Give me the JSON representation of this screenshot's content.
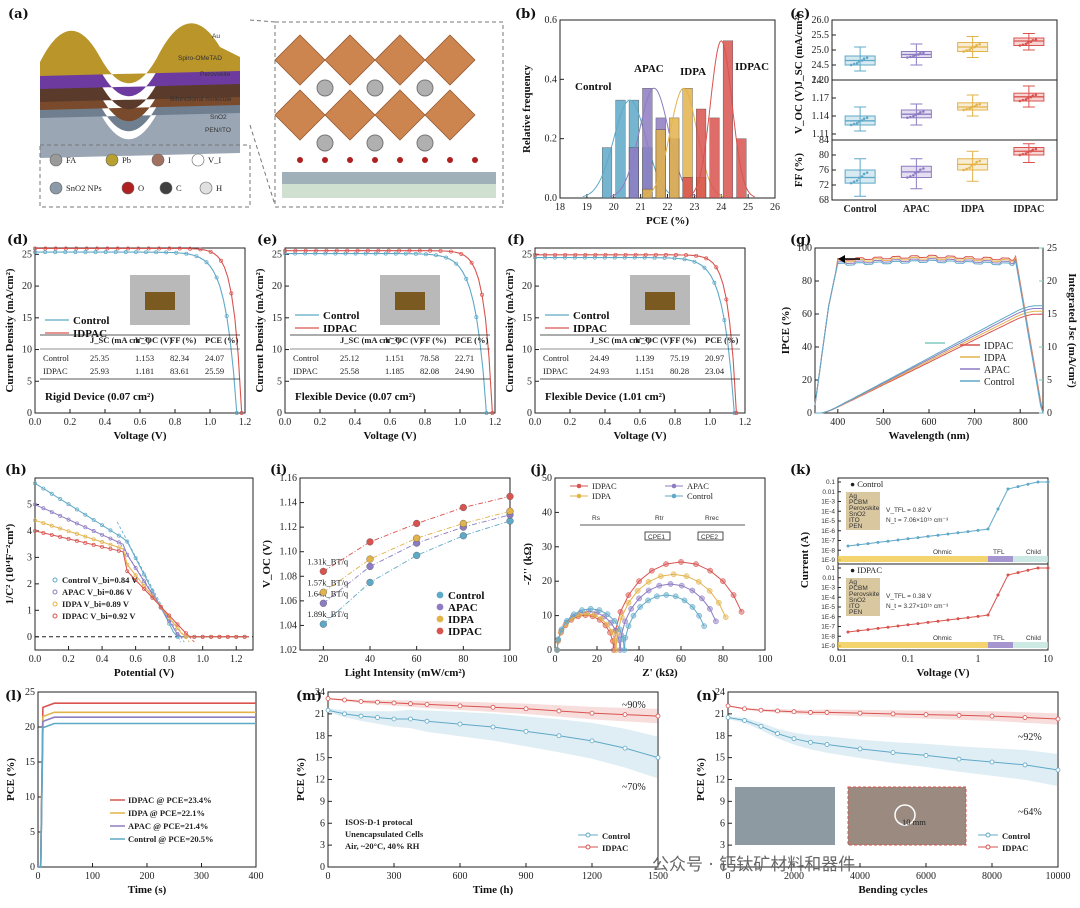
{
  "panel_labels": [
    "(a)",
    "(b)",
    "(c)",
    "(d)",
    "(e)",
    "(f)",
    "(g)",
    "(h)",
    "(i)",
    "(j)",
    "(k)",
    "(l)",
    "(m)",
    "(n)"
  ],
  "colors": {
    "Control": "#5fa9c8",
    "APAC": "#8e7cc3",
    "IDPA": "#e3b34b",
    "IDPAC": "#d9534f"
  },
  "schematic": {
    "layers": [
      "Au",
      "Spiro-OMeTAD",
      "Perovskite",
      "Bifunctional molecule",
      "SnO2",
      "PEN/ITO"
    ],
    "legend": [
      "FA",
      "Pb",
      "I",
      "V_I",
      "SnO2 NPs",
      "O",
      "C",
      "H"
    ],
    "icons": [
      "fa-sphere-icon",
      "pb-sphere-icon",
      "iodide-sphere-icon",
      "vacancy-circle-icon",
      "sno2-sphere-icon",
      "oxygen-sphere-icon",
      "carbon-sphere-icon",
      "hydrogen-sphere-icon"
    ]
  },
  "watermark": "公众号 · 钙钛矿材料和器件",
  "chart_data": [
    {
      "id": "b",
      "type": "bar",
      "xlabel": "PCE (%)",
      "ylabel": "Relative frequency",
      "xlim": [
        18,
        26
      ],
      "ylim": [
        0,
        0.6
      ],
      "xticks": [
        18,
        19,
        20,
        21,
        22,
        23,
        24,
        25,
        26
      ],
      "yticks": [
        0,
        0.2,
        0.4,
        0.6
      ],
      "series": [
        {
          "name": "Control",
          "bins": [
            19.75,
            20.25,
            20.75,
            21.25
          ],
          "values": [
            0.17,
            0.33,
            0.33,
            0.17
          ],
          "fit_center": 20.6,
          "fit_sigma": 0.6
        },
        {
          "name": "APAC",
          "bins": [
            20.75,
            21.25,
            21.75,
            22.25
          ],
          "values": [
            0.17,
            0.37,
            0.27,
            0.2
          ],
          "fit_center": 21.5,
          "fit_sigma": 0.55
        },
        {
          "name": "IDPA",
          "bins": [
            21.25,
            21.75,
            22.25,
            22.75,
            23.25
          ],
          "values": [
            0.03,
            0.23,
            0.27,
            0.37,
            0.07
          ],
          "fit_center": 22.6,
          "fit_sigma": 0.5
        },
        {
          "name": "IDPAC",
          "bins": [
            22.75,
            23.25,
            23.75,
            24.25,
            24.75
          ],
          "values": [
            0.07,
            0.3,
            0.27,
            0.53,
            0.2
          ],
          "fit_center": 24.0,
          "fit_sigma": 0.4
        }
      ]
    },
    {
      "id": "c",
      "type": "box",
      "categories": [
        "Control",
        "APAC",
        "IDPA",
        "IDPAC"
      ],
      "subplots": [
        {
          "ylabel": "J_SC (mA/cm²)",
          "yticks": [
            24.0,
            24.5,
            25.0,
            25.5,
            26.0
          ],
          "ylim": [
            24.0,
            26.0
          ],
          "q": [
            [
              24.3,
              24.5,
              24.65,
              24.8,
              25.1
            ],
            [
              24.5,
              24.75,
              24.85,
              24.95,
              25.2
            ],
            [
              24.75,
              24.95,
              25.1,
              25.25,
              25.45
            ],
            [
              25.0,
              25.15,
              25.3,
              25.4,
              25.55
            ]
          ]
        },
        {
          "ylabel": "V_OC (V)",
          "yticks": [
            1.11,
            1.14,
            1.17,
            1.2
          ],
          "ylim": [
            1.1,
            1.2
          ],
          "q": [
            [
              1.115,
              1.125,
              1.132,
              1.14,
              1.155
            ],
            [
              1.125,
              1.137,
              1.143,
              1.15,
              1.16
            ],
            [
              1.14,
              1.15,
              1.155,
              1.162,
              1.175
            ],
            [
              1.155,
              1.165,
              1.172,
              1.178,
              1.19
            ]
          ]
        },
        {
          "ylabel": "FF (%)",
          "yticks": [
            68,
            72,
            76,
            80,
            84
          ],
          "ylim": [
            68,
            84
          ],
          "q": [
            [
              69,
              72.5,
              74,
              76,
              79
            ],
            [
              71,
              74,
              75.5,
              77,
              79
            ],
            [
              73,
              76,
              77.5,
              79,
              81
            ],
            [
              78,
              80,
              81,
              82,
              83
            ]
          ]
        }
      ]
    },
    {
      "id": "d",
      "type": "line",
      "xlabel": "Voltage (V)",
      "ylabel": "Current Density (mA/cm²)",
      "xlim": [
        0,
        1.2
      ],
      "ylim": [
        0,
        26
      ],
      "xticks": [
        0.0,
        0.2,
        0.4,
        0.6,
        0.8,
        1.0,
        1.2
      ],
      "yticks": [
        0,
        5,
        10,
        15,
        20,
        25
      ],
      "caption": "Rigid Device (0.07 cm²)",
      "series": [
        {
          "name": "Control",
          "jsc": 25.35,
          "voc": 1.153
        },
        {
          "name": "IDPAC",
          "jsc": 25.93,
          "voc": 1.181
        }
      ],
      "table": {
        "headers": [
          "",
          "J_SC (mA cm⁻²)",
          "V_OC (V)",
          "FF (%)",
          "PCE (%)"
        ],
        "rows": [
          [
            "Control",
            "25.35",
            "1.153",
            "82.34",
            "24.07"
          ],
          [
            "IDPAC",
            "25.93",
            "1.181",
            "83.61",
            "25.59"
          ]
        ]
      }
    },
    {
      "id": "e",
      "type": "line",
      "xlabel": "Voltage (V)",
      "ylabel": "Current Density (mA/cm²)",
      "xlim": [
        0,
        1.2
      ],
      "ylim": [
        0,
        26
      ],
      "xticks": [
        0.0,
        0.2,
        0.4,
        0.6,
        0.8,
        1.0,
        1.2
      ],
      "yticks": [
        0,
        5,
        10,
        15,
        20,
        25
      ],
      "caption": "Flexible Device (0.07 cm²)",
      "series": [
        {
          "name": "Control",
          "jsc": 25.12,
          "voc": 1.151
        },
        {
          "name": "IDPAC",
          "jsc": 25.58,
          "voc": 1.185
        }
      ],
      "table": {
        "headers": [
          "",
          "J_SC (mA cm⁻²)",
          "V_OC (V)",
          "FF (%)",
          "PCE (%)"
        ],
        "rows": [
          [
            "Control",
            "25.12",
            "1.151",
            "78.58",
            "22.71"
          ],
          [
            "IDPAC",
            "25.58",
            "1.185",
            "82.08",
            "24.90"
          ]
        ]
      }
    },
    {
      "id": "f",
      "type": "line",
      "xlabel": "Voltage (V)",
      "ylabel": "Current Density (mA/cm²)",
      "xlim": [
        0,
        1.2
      ],
      "ylim": [
        0,
        26
      ],
      "xticks": [
        0.0,
        0.2,
        0.4,
        0.6,
        0.8,
        1.0,
        1.2
      ],
      "yticks": [
        0,
        5,
        10,
        15,
        20,
        25
      ],
      "caption": "Flexible Device (1.01 cm²)",
      "series": [
        {
          "name": "Control",
          "jsc": 24.49,
          "voc": 1.139
        },
        {
          "name": "IDPAC",
          "jsc": 24.93,
          "voc": 1.151
        }
      ],
      "table": {
        "headers": [
          "",
          "J_SC (mA cm⁻²)",
          "V_OC (V)",
          "FF (%)",
          "PCE (%)"
        ],
        "rows": [
          [
            "Control",
            "24.49",
            "1.139",
            "75.19",
            "20.97"
          ],
          [
            "IDPAC",
            "24.93",
            "1.151",
            "80.28",
            "23.04"
          ]
        ]
      }
    },
    {
      "id": "g",
      "type": "line",
      "xlabel": "Wavelength (nm)",
      "ylabel": "IPCE (%)",
      "ylabel2": "Integrated Jsc (mA/cm²)",
      "xlim": [
        350,
        850
      ],
      "ylim": [
        0,
        100
      ],
      "y2lim": [
        0,
        25
      ],
      "xticks": [
        400,
        500,
        600,
        700,
        800
      ],
      "yticks": [
        0,
        20,
        40,
        60,
        80,
        100
      ],
      "y2ticks": [
        0,
        5,
        10,
        15,
        20,
        25
      ],
      "series": [
        {
          "name": "IDPAC",
          "plateau": 95
        },
        {
          "name": "IDPA",
          "plateau": 94
        },
        {
          "name": "APAC",
          "plateau": 93
        },
        {
          "name": "Control",
          "plateau": 92
        }
      ]
    },
    {
      "id": "h",
      "type": "line",
      "xlabel": "Potential (V)",
      "ylabel": "1/C² (10¹⁴F⁻²cm⁴)",
      "xlim": [
        0,
        1.3
      ],
      "ylim": [
        -0.5,
        6
      ],
      "xticks": [
        0.0,
        0.2,
        0.4,
        0.6,
        0.8,
        1.0,
        1.2
      ],
      "yticks": [
        0,
        1,
        2,
        3,
        4,
        5
      ],
      "series": [
        {
          "name": "Control",
          "label": "V_bi=0.84 V",
          "start": 5.8,
          "vbi": 0.84
        },
        {
          "name": "APAC",
          "label": "V_bi=0.86 V",
          "start": 5.0,
          "vbi": 0.86
        },
        {
          "name": "IDPA",
          "label": "V_bi=0.89 V",
          "start": 4.4,
          "vbi": 0.89
        },
        {
          "name": "IDPAC",
          "label": "V_bi=0.92 V",
          "start": 4.0,
          "vbi": 0.92
        }
      ]
    },
    {
      "id": "i",
      "type": "scatter",
      "xlabel": "Light Intensity (mW/cm²)",
      "ylabel": "V_OC (V)",
      "xlim": [
        10,
        100
      ],
      "ylim": [
        1.02,
        1.16
      ],
      "xticks": [
        20,
        40,
        60,
        80,
        100
      ],
      "yticks": [
        1.02,
        1.04,
        1.06,
        1.08,
        1.1,
        1.12,
        1.14,
        1.16
      ],
      "x": [
        20,
        40,
        60,
        80,
        100
      ],
      "series": [
        {
          "name": "Control",
          "values": [
            1.041,
            1.075,
            1.097,
            1.113,
            1.125
          ],
          "label": "1.89k_BT/q"
        },
        {
          "name": "APAC",
          "values": [
            1.058,
            1.088,
            1.107,
            1.12,
            1.13
          ],
          "label": "1.64k_BT/q"
        },
        {
          "name": "IDPA",
          "values": [
            1.067,
            1.094,
            1.111,
            1.123,
            1.133
          ],
          "label": "1.57k_BT/q"
        },
        {
          "name": "IDPAC",
          "values": [
            1.084,
            1.108,
            1.123,
            1.136,
            1.145
          ],
          "label": "1.31k_BT/q"
        }
      ]
    },
    {
      "id": "j",
      "type": "scatter",
      "xlabel": "Z' (kΩ)",
      "ylabel": "-Z'' (kΩ)",
      "xlim": [
        0,
        100
      ],
      "ylim": [
        0,
        50
      ],
      "xticks": [
        0,
        20,
        40,
        60,
        80,
        100
      ],
      "yticks": [
        0,
        10,
        20,
        30,
        40,
        50
      ],
      "circuit": [
        "Rs",
        "Rtr",
        "Rrec",
        "CPE1",
        "CPE2"
      ],
      "series": [
        {
          "name": "IDPAC",
          "rs": 1,
          "r1": 27,
          "r2": 64
        },
        {
          "name": "APAC",
          "r1": 30,
          "r2": 48,
          "rs": 1
        },
        {
          "name": "IDPA",
          "r1": 28,
          "r2": 55,
          "rs": 1
        },
        {
          "name": "Control",
          "r1": 32,
          "r2": 40,
          "rs": 1
        }
      ]
    },
    {
      "id": "k",
      "type": "line",
      "xlabel": "Voltage (V)",
      "ylabel": "Current (A)",
      "xscale": "log",
      "yscale": "log",
      "xticks": [
        "0.01",
        "0.1",
        "1",
        "10"
      ],
      "yticks": [
        "0.1",
        "0.01",
        "1E-3",
        "1E-4",
        "1E-5",
        "1E-6",
        "1E-7",
        "1E-8",
        "1E-9"
      ],
      "regions": [
        "Ohmic",
        "TFL",
        "Child"
      ],
      "subplots": [
        {
          "name": "Control",
          "vtfl": "V_TFL = 0.82 V",
          "nt": "N_t = 7.06×10¹⁵ cm⁻³"
        },
        {
          "name": "IDPAC",
          "vtfl": "V_TFL = 0.38 V",
          "nt": "N_t = 3.27×10¹⁵ cm⁻³"
        }
      ],
      "stack_layers": [
        "Ag",
        "PCBM",
        "Perovskite",
        "SnO2",
        "ITO",
        "PEN"
      ]
    },
    {
      "id": "l",
      "type": "line",
      "xlabel": "Time (s)",
      "ylabel": "PCE (%)",
      "xlim": [
        0,
        400
      ],
      "ylim": [
        0,
        25
      ],
      "xticks": [
        0,
        100,
        200,
        300,
        400
      ],
      "yticks": [
        0,
        5,
        10,
        15,
        20,
        25
      ],
      "series": [
        {
          "name": "IDPAC @ PCE=23.4%",
          "value": 23.4,
          "key": "IDPAC"
        },
        {
          "name": "IDPA @ PCE=22.1%",
          "value": 22.1,
          "key": "IDPA"
        },
        {
          "name": "APAC @ PCE=21.4%",
          "value": 21.4,
          "key": "APAC"
        },
        {
          "name": "Control @ PCE=20.5%",
          "value": 20.5,
          "key": "Control"
        }
      ]
    },
    {
      "id": "m",
      "type": "line",
      "xlabel": "Time (h)",
      "ylabel": "PCE (%)",
      "xlim": [
        0,
        1500
      ],
      "ylim": [
        0,
        24
      ],
      "xticks": [
        0,
        300,
        600,
        900,
        1200,
        1500
      ],
      "yticks": [
        0,
        3,
        6,
        9,
        12,
        15,
        18,
        21,
        24
      ],
      "notes": [
        "ISOS-D-1 protocal",
        "Unencapsulated Cells",
        "Air, ~20°C, 40% RH"
      ],
      "retention": [
        "~90%",
        "~70%"
      ],
      "series": [
        {
          "name": "Control",
          "x": [
            0,
            75,
            150,
            225,
            300,
            375,
            450,
            600,
            750,
            900,
            1050,
            1200,
            1350,
            1500
          ],
          "values": [
            21.5,
            21.0,
            20.7,
            20.5,
            20.3,
            20.3,
            20.0,
            19.6,
            19.2,
            18.6,
            18.0,
            17.3,
            16.3,
            15.0
          ]
        },
        {
          "name": "IDPAC",
          "x": [
            0,
            75,
            150,
            225,
            300,
            375,
            450,
            600,
            750,
            900,
            1050,
            1200,
            1350,
            1500
          ],
          "values": [
            23.1,
            22.9,
            22.7,
            22.6,
            22.5,
            22.4,
            22.3,
            22.1,
            21.9,
            21.7,
            21.4,
            21.1,
            20.9,
            20.7
          ]
        }
      ]
    },
    {
      "id": "n",
      "type": "line",
      "xlabel": "Bending cycles",
      "ylabel": "PCE (%)",
      "xlim": [
        0,
        10000
      ],
      "ylim": [
        0,
        24
      ],
      "xticks": [
        0,
        2000,
        4000,
        6000,
        8000,
        10000
      ],
      "yticks": [
        0,
        3,
        6,
        9,
        12,
        15,
        18,
        21,
        24
      ],
      "retention": [
        "~92%",
        "~64%"
      ],
      "inset_scale": "10 mm",
      "series": [
        {
          "name": "Control",
          "x": [
            0,
            500,
            1000,
            1500,
            2000,
            2500,
            3000,
            4000,
            5000,
            6000,
            7000,
            8000,
            9000,
            10000
          ],
          "values": [
            20.5,
            20.1,
            19.3,
            18.3,
            17.6,
            17.1,
            16.8,
            16.2,
            15.7,
            15.3,
            14.8,
            14.4,
            14.0,
            13.3
          ]
        },
        {
          "name": "IDPAC",
          "x": [
            0,
            500,
            1000,
            1500,
            2000,
            2500,
            3000,
            4000,
            5000,
            6000,
            7000,
            8000,
            9000,
            10000
          ],
          "values": [
            22.1,
            21.7,
            21.5,
            21.4,
            21.3,
            21.2,
            21.2,
            21.1,
            21.0,
            20.9,
            20.8,
            20.7,
            20.5,
            20.3
          ]
        }
      ]
    }
  ]
}
